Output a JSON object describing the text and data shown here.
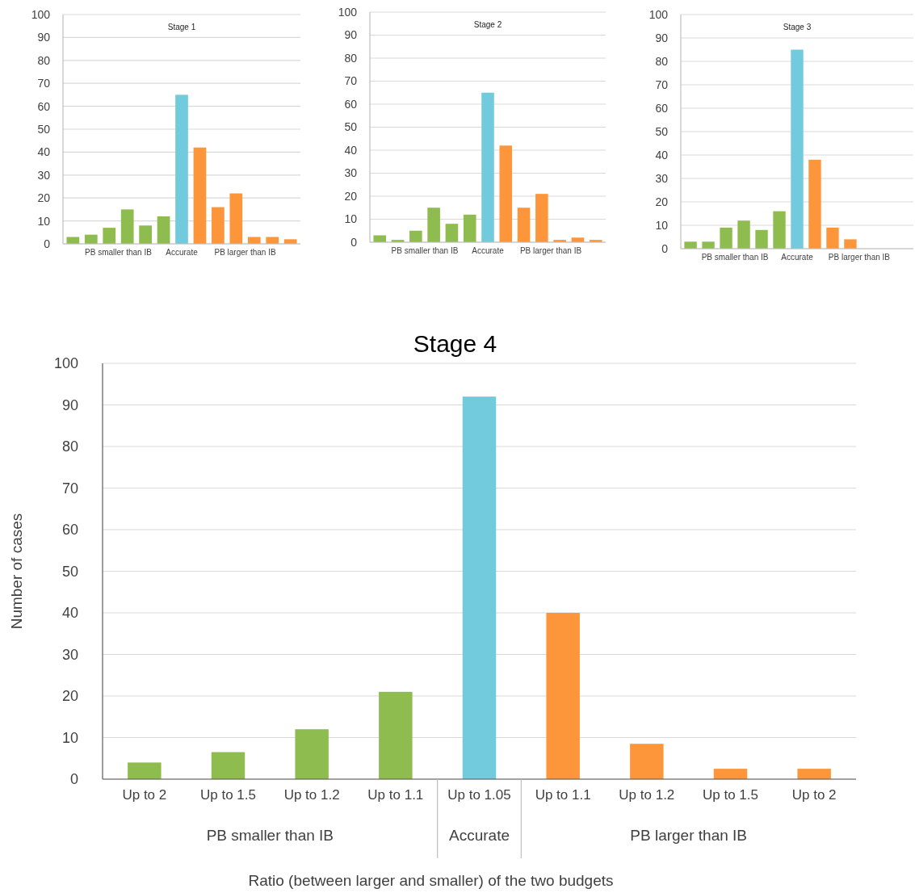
{
  "chart_data": [
    {
      "type": "bar",
      "title": "Stage 1",
      "categories": [
        null,
        null,
        null,
        null,
        null,
        null,
        null,
        null,
        null,
        null,
        null,
        null,
        null
      ],
      "values": [
        3,
        4,
        7,
        15,
        8,
        12,
        65,
        42,
        16,
        22,
        3,
        3,
        2
      ],
      "colors": [
        "#8fbc4f",
        "#8fbc4f",
        "#8fbc4f",
        "#8fbc4f",
        "#8fbc4f",
        "#8fbc4f",
        "#72cbdd",
        "#fd963b",
        "#fd963b",
        "#fd963b",
        "#fd963b",
        "#fd963b",
        "#fd963b"
      ],
      "ylim": [
        0,
        100
      ],
      "yticks": [
        0,
        10,
        20,
        30,
        40,
        50,
        60,
        70,
        80,
        90,
        100
      ],
      "grid": "y",
      "annotations": [
        "PB smaller than IB",
        "Accurate",
        "PB larger than IB"
      ]
    },
    {
      "type": "bar",
      "title": "Stage 2",
      "categories": [
        null,
        null,
        null,
        null,
        null,
        null,
        null,
        null,
        null,
        null,
        null,
        null,
        null
      ],
      "values": [
        3,
        1,
        5,
        15,
        8,
        12,
        65,
        42,
        15,
        21,
        1,
        2,
        1
      ],
      "colors": [
        "#8fbc4f",
        "#8fbc4f",
        "#8fbc4f",
        "#8fbc4f",
        "#8fbc4f",
        "#8fbc4f",
        "#72cbdd",
        "#fd963b",
        "#fd963b",
        "#fd963b",
        "#fd963b",
        "#fd963b",
        "#fd963b"
      ],
      "ylim": [
        0,
        100
      ],
      "yticks": [
        0,
        10,
        20,
        30,
        40,
        50,
        60,
        70,
        80,
        90,
        100
      ],
      "grid": "y",
      "annotations": [
        "PB smaller than IB",
        "Accurate",
        "PB larger than IB"
      ]
    },
    {
      "type": "bar",
      "title": "Stage 3",
      "categories": [
        null,
        null,
        null,
        null,
        null,
        null,
        null,
        null,
        null,
        null,
        null,
        null,
        null
      ],
      "values": [
        3,
        3,
        9,
        12,
        8,
        16,
        85,
        38,
        9,
        4,
        0,
        0,
        0
      ],
      "colors": [
        "#8fbc4f",
        "#8fbc4f",
        "#8fbc4f",
        "#8fbc4f",
        "#8fbc4f",
        "#8fbc4f",
        "#72cbdd",
        "#fd963b",
        "#fd963b",
        "#fd963b",
        "#fd963b",
        "#fd963b",
        "#fd963b"
      ],
      "ylim": [
        0,
        100
      ],
      "yticks": [
        0,
        10,
        20,
        30,
        40,
        50,
        60,
        70,
        80,
        90,
        100
      ],
      "grid": "y",
      "annotations": [
        "PB smaller than IB",
        "Accurate",
        "PB larger than IB"
      ]
    },
    {
      "type": "bar",
      "title": "Stage 4",
      "xlabel": "Ratio (between larger and smaller) of the two budgets",
      "ylabel": "Number of cases",
      "categories": [
        "Up to 2",
        "Up to 1.5",
        "Up to 1.2",
        "Up to 1.1",
        "Up to 1.05",
        "Up to 1.1",
        "Up to 1.2",
        "Up to 1.5",
        "Up to 2"
      ],
      "values": [
        4,
        6.5,
        12,
        21,
        92,
        40,
        8.5,
        2.5,
        2.5
      ],
      "colors": [
        "#8fbc4f",
        "#8fbc4f",
        "#8fbc4f",
        "#8fbc4f",
        "#72cbdd",
        "#fd963b",
        "#fd963b",
        "#fd963b",
        "#fd963b"
      ],
      "ylim": [
        0,
        100
      ],
      "yticks": [
        0,
        10,
        20,
        30,
        40,
        50,
        60,
        70,
        80,
        90,
        100
      ],
      "grid": "y",
      "annotations": [
        "PB smaller than IB",
        "Accurate",
        "PB larger than IB"
      ]
    }
  ]
}
